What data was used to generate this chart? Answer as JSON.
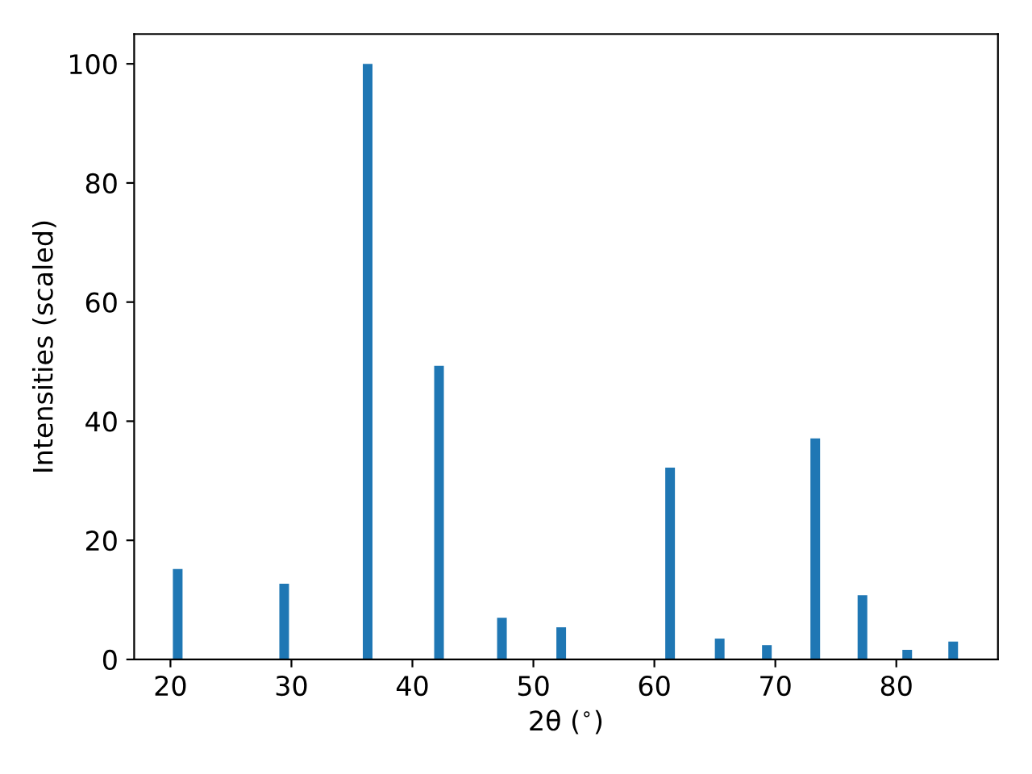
{
  "chart_data": {
    "type": "bar",
    "xlabel": "2θ ($^{∘}$)",
    "ylabel": "Intensities (scaled)",
    "x": [
      20.6,
      29.4,
      36.3,
      42.2,
      47.4,
      52.3,
      61.3,
      65.4,
      69.3,
      73.3,
      77.2,
      80.9,
      84.7
    ],
    "values": [
      15.2,
      12.7,
      100,
      49.3,
      7.0,
      5.4,
      32.2,
      3.5,
      2.4,
      37.1,
      10.8,
      1.6,
      3.0
    ],
    "color": "#1f77b4",
    "xlim": [
      17.0,
      88.4
    ],
    "xticks": [
      20,
      30,
      40,
      50,
      60,
      70,
      80
    ],
    "ylim": [
      0,
      105
    ],
    "yticks": [
      0,
      20,
      40,
      60,
      80,
      100
    ],
    "grid": false,
    "legend": false
  }
}
